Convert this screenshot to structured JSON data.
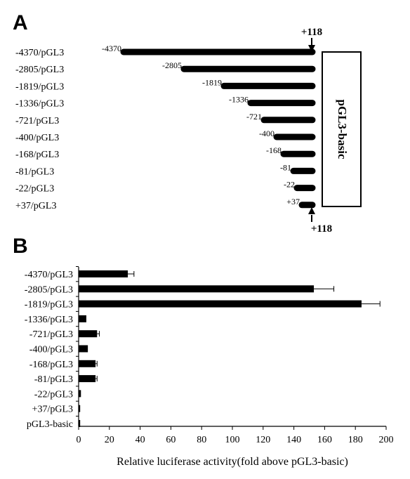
{
  "chart_data": [
    {
      "type": "diagram",
      "panel_label": "A",
      "constructs": [
        {
          "label": "-4370/pGL3",
          "start_label": "-4370",
          "start": -4370
        },
        {
          "label": "-2805/pGL3",
          "start_label": "-2805",
          "start": -2805
        },
        {
          "label": "-1819/pGL3",
          "start_label": "-1819",
          "start": -1819
        },
        {
          "label": "-1336/pGL3",
          "start_label": "-1336",
          "start": -1336
        },
        {
          "label": "-721/pGL3",
          "start_label": "-721",
          "start": -721
        },
        {
          "label": "-400/pGL3",
          "start_label": "-400",
          "start": -400
        },
        {
          "label": "-168/pGL3",
          "start_label": "-168",
          "start": -168
        },
        {
          "label": "-81/pGL3",
          "start_label": "-81",
          "start": -81
        },
        {
          "label": "-22/pGL3",
          "start_label": "-22",
          "start": -22
        },
        {
          "label": "+37/pGL3",
          "start_label": "+37",
          "start": 37
        }
      ],
      "end_label": "+118",
      "vector_label": "pGL3-basic"
    },
    {
      "type": "bar",
      "orientation": "horizontal",
      "panel_label": "B",
      "categories": [
        "-4370/pGL3",
        "-2805/pGL3",
        "-1819/pGL3",
        "-1336/pGL3",
        "-721/pGL3",
        "-400/pGL3",
        "-168/pGL3",
        "-81/pGL3",
        "-22/pGL3",
        "+37/pGL3",
        "pGL3-basic"
      ],
      "values": [
        32,
        153,
        184,
        5,
        12,
        6,
        11,
        11,
        1.5,
        1,
        1
      ],
      "errors": [
        4,
        13,
        12,
        0,
        1.5,
        0,
        1,
        1,
        0,
        0,
        0
      ],
      "xlabel": "Relative luciferase activity(fold above pGL3-basic)",
      "xlim": [
        0,
        200
      ],
      "xticks": [
        0,
        20,
        40,
        60,
        80,
        100,
        120,
        140,
        160,
        180,
        200
      ],
      "grid": false
    }
  ]
}
